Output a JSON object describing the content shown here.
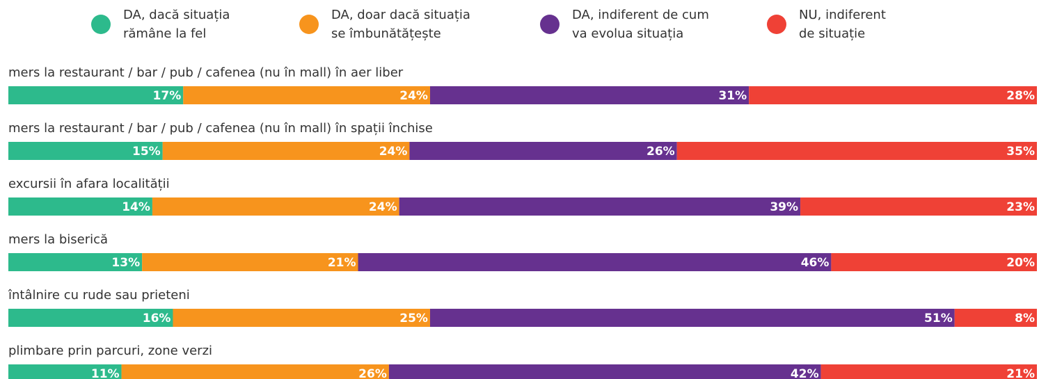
{
  "chart_data": {
    "type": "stacked-bar-horizontal",
    "categories": [
      "mers la restaurant / bar / pub / cafenea (nu în mall) în aer liber",
      "mers la restaurant / bar / pub / cafenea (nu în mall) în spații închise",
      "excursii în afara localității",
      "mers la biserică",
      "întâlnire cu rude sau prieteni",
      "plimbare prin parcuri, zone verzi"
    ],
    "series": [
      {
        "name": "DA, dacă situația\nrămâne la fel",
        "color": "#2dba8c",
        "values": [
          17,
          15,
          14,
          13,
          16,
          11
        ],
        "value_labels": [
          "17%",
          "15%",
          "14%",
          "13%",
          "16%",
          "11%"
        ]
      },
      {
        "name": "DA, doar dacă situația\nse îmbunătățește",
        "color": "#f7941d",
        "values": [
          24,
          24,
          24,
          21,
          25,
          26
        ],
        "value_labels": [
          "24%",
          "24%",
          "24%",
          "21%",
          "25%",
          "26%"
        ]
      },
      {
        "name": "DA, indiferent de cum\nva evolua situația",
        "color": "#66318f",
        "values": [
          31,
          26,
          39,
          46,
          51,
          42
        ],
        "value_labels": [
          "31%",
          "26%",
          "39%",
          "46%",
          "51%",
          "42%"
        ]
      },
      {
        "name": "NU, indiferent\nde situație",
        "color": "#ef4136",
        "values": [
          28,
          35,
          23,
          20,
          8,
          21
        ],
        "value_labels": [
          "28%",
          "35%",
          "23%",
          "20%",
          "8%",
          "21%"
        ]
      }
    ]
  }
}
